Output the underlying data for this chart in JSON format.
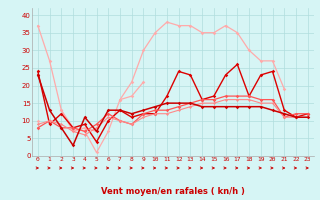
{
  "x_labels": [
    0,
    1,
    2,
    3,
    4,
    5,
    6,
    7,
    8,
    9,
    10,
    11,
    12,
    13,
    14,
    15,
    16,
    17,
    18,
    19,
    20,
    21,
    22,
    23
  ],
  "series": [
    {
      "y": [
        37,
        27,
        13,
        8,
        7,
        1,
        7,
        16,
        21,
        30,
        35,
        38,
        37,
        37,
        35,
        35,
        37,
        35,
        30,
        27,
        27,
        19,
        null,
        null
      ],
      "color": "#ffaaaa",
      "lw": 0.9,
      "marker": "D",
      "ms": 1.8
    },
    {
      "y": [
        10,
        null,
        13,
        7,
        8,
        7,
        null,
        16,
        17,
        21,
        null,
        null,
        null,
        null,
        null,
        null,
        null,
        null,
        null,
        null,
        null,
        null,
        null,
        null
      ],
      "color": "#ffaaaa",
      "lw": 0.9,
      "marker": "D",
      "ms": 1.8
    },
    {
      "y": [
        24,
        9,
        12,
        8,
        9,
        4,
        10,
        13,
        11,
        12,
        12,
        17,
        24,
        23,
        16,
        17,
        23,
        26,
        17,
        23,
        24,
        13,
        11,
        12
      ],
      "color": "#dd0000",
      "lw": 1.0,
      "marker": "D",
      "ms": 1.8
    },
    {
      "y": [
        8,
        10,
        8,
        8,
        7,
        9,
        12,
        10,
        9,
        12,
        13,
        13,
        14,
        15,
        16,
        16,
        17,
        17,
        17,
        16,
        16,
        11,
        12,
        12
      ],
      "color": "#ff5555",
      "lw": 0.9,
      "marker": "D",
      "ms": 1.8
    },
    {
      "y": [
        9,
        10,
        9,
        7,
        6,
        8,
        11,
        10,
        9,
        11,
        12,
        12,
        13,
        14,
        15,
        15,
        16,
        16,
        16,
        15,
        15,
        11,
        11,
        11
      ],
      "color": "#ff8888",
      "lw": 0.8,
      "marker": "D",
      "ms": 1.5
    },
    {
      "y": [
        23,
        13,
        8,
        3,
        11,
        7,
        13,
        13,
        12,
        13,
        14,
        15,
        15,
        15,
        14,
        14,
        14,
        14,
        14,
        14,
        13,
        12,
        11,
        11
      ],
      "color": "#cc0000",
      "lw": 1.1,
      "marker": "D",
      "ms": 1.8
    }
  ],
  "xlim": [
    -0.5,
    23.5
  ],
  "ylim": [
    0,
    42
  ],
  "yticks": [
    0,
    5,
    10,
    15,
    20,
    25,
    30,
    35,
    40
  ],
  "xlabel": "Vent moyen/en rafales ( kn/h )",
  "bg_color": "#d6f5f5",
  "grid_color": "#b0dede",
  "tick_color": "#cc0000",
  "label_color": "#cc0000",
  "arrow_color": "#cc0000"
}
